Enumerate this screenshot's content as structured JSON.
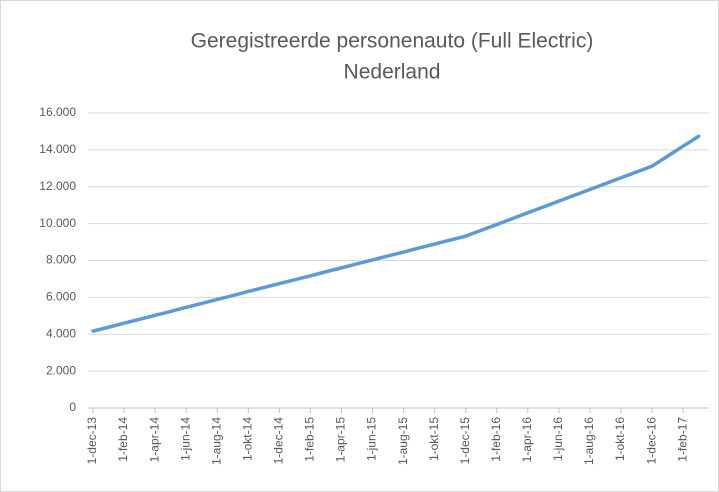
{
  "chart_data": {
    "type": "line",
    "title": [
      "Geregistreerde personenauto (Full Electric)",
      "Nederland"
    ],
    "categories": [
      "1-dec-13",
      null,
      "1-feb-14",
      null,
      "1-apr-14",
      null,
      "1-jun-14",
      null,
      "1-aug-14",
      null,
      "1-okt-14",
      null,
      "1-dec-14",
      null,
      "1-feb-15",
      null,
      "1-apr-15",
      null,
      "1-jun-15",
      null,
      "1-aug-15",
      null,
      "1-okt-15",
      null,
      "1-dec-15",
      null,
      "1-feb-16",
      null,
      "1-apr-16",
      null,
      "1-jun-16",
      null,
      "1-aug-16",
      null,
      "1-okt-16",
      null,
      "1-dec-16",
      null,
      "1-feb-17",
      null
    ],
    "values": [
      4170,
      4380,
      4600,
      4810,
      5030,
      5240,
      5460,
      5670,
      5890,
      6100,
      6320,
      6530,
      6750,
      6960,
      7170,
      7390,
      7600,
      7820,
      8030,
      8250,
      8460,
      8680,
      8890,
      9110,
      9320,
      9640,
      9950,
      10270,
      10590,
      10900,
      11220,
      11540,
      11850,
      12170,
      12490,
      12800,
      13120,
      13660,
      14200,
      14740
    ],
    "color": "#5b9bd5",
    "ylim": [
      0,
      16000
    ],
    "yticks": [
      0,
      {
        "value": 2000,
        "label": "2.000"
      },
      {
        "value": 4000,
        "label": "4.000"
      },
      {
        "value": 6000,
        "label": "6.000"
      },
      {
        "value": 8000,
        "label": "8.000"
      },
      {
        "value": 10000,
        "label": "10.000"
      },
      {
        "value": 12000,
        "label": "12.000"
      },
      {
        "value": 14000,
        "label": "14.000"
      },
      {
        "value": 16000,
        "label": "16.000"
      }
    ],
    "grid": true
  }
}
